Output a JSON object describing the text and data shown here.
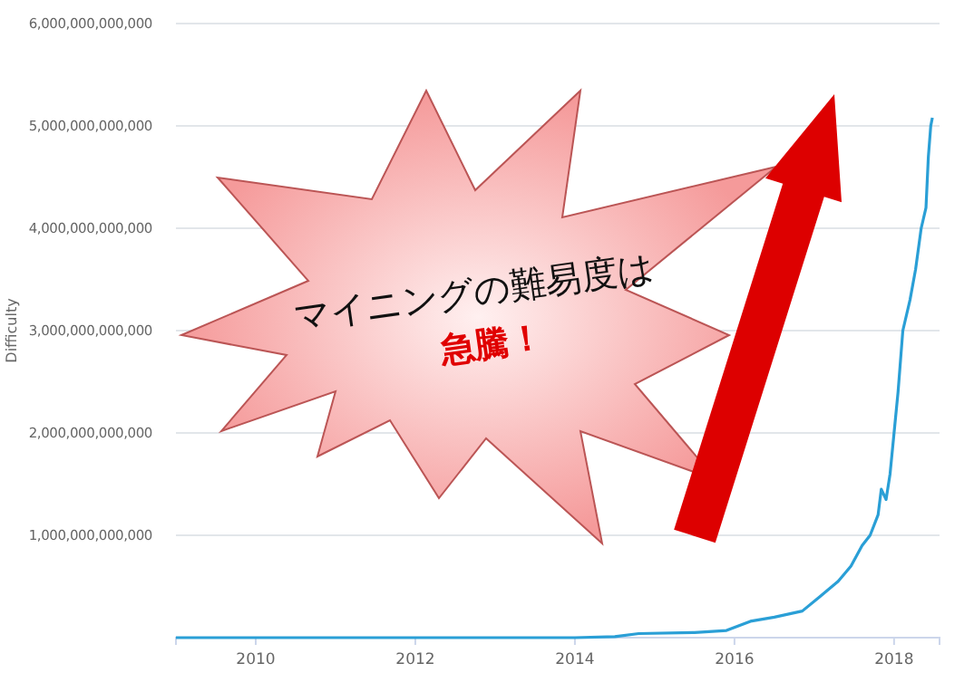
{
  "chart_data": {
    "type": "line",
    "ylabel": "Difficulty",
    "annotations": [
      "マイニングの難易度は",
      "急騰！"
    ],
    "series": [
      {
        "color": "#2a9fd6",
        "x": [
          2009,
          2013.5,
          2014,
          2014.5,
          2014.8,
          2015.5,
          2015.9,
          2016.2,
          2016.5,
          2016.85,
          2017.07,
          2017.3,
          2017.46,
          2017.6,
          2017.7,
          2017.8,
          2017.84,
          2017.9,
          2017.95,
          2018.0,
          2018.05,
          2018.11,
          2018.2,
          2018.27,
          2018.34,
          2018.4,
          2018.43,
          2018.46,
          2018.48
        ],
        "values": [
          0,
          0,
          0,
          10000000000,
          40000000000,
          50000000000,
          70000000000,
          160000000000,
          200000000000,
          260000000000,
          400000000000,
          550000000000,
          700000000000,
          900000000000,
          1000000000000,
          1200000000000,
          1450000000000,
          1350000000000,
          1600000000000,
          2000000000000,
          2400000000000,
          3000000000000,
          3300000000000,
          3600000000000,
          4000000000000,
          4200000000000,
          4700000000000,
          5000000000000,
          5080000000000
        ]
      }
    ],
    "xlim": [
      2009,
      2018.57
    ],
    "xticks": [
      2010,
      2012,
      2014,
      2016,
      2018
    ],
    "ylim": [
      0,
      6000000000000
    ],
    "yticks": [
      {
        "value": 0,
        "label": null
      },
      {
        "value": 1000000000000,
        "label": "1,000,000,000,000"
      },
      {
        "value": 2000000000000,
        "label": "2,000,000,000,000"
      },
      {
        "value": 3000000000000,
        "label": "3,000,000,000,000"
      },
      {
        "value": 4000000000000,
        "label": "4,000,000,000,000"
      },
      {
        "value": 5000000000000,
        "label": "5,000,000,000,000"
      },
      {
        "value": 6000000000000,
        "label": "6,000,000,000,000"
      }
    ],
    "grid": "y",
    "marker": "none",
    "line_style": "solid"
  }
}
